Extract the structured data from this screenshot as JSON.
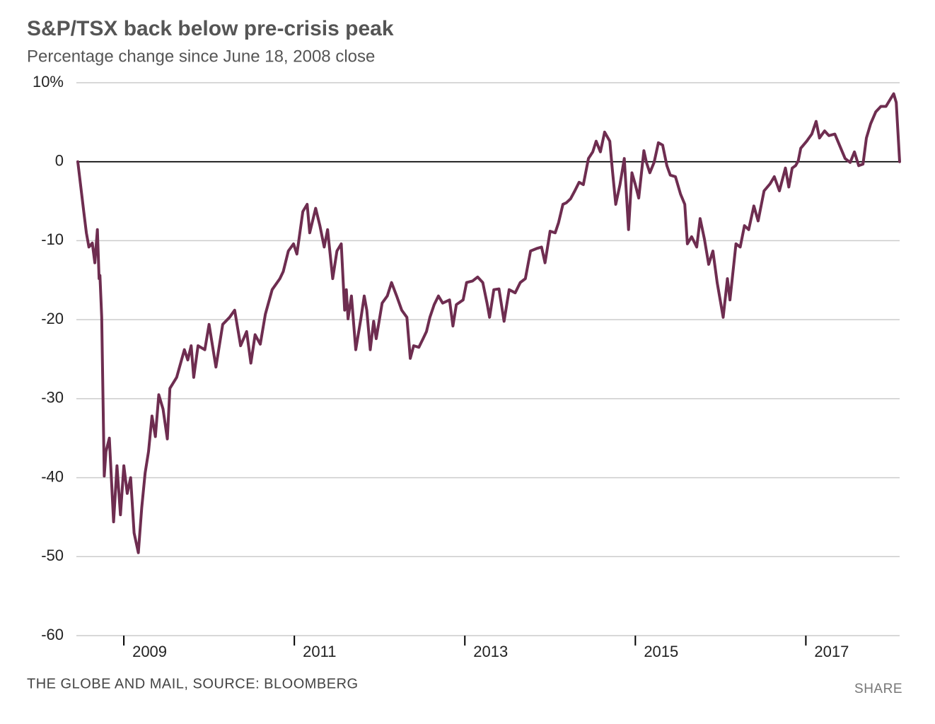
{
  "chart_data": {
    "type": "line",
    "title": "S&P/TSX back below pre-crisis peak",
    "subtitle": "Percentage change since June 18, 2008 close",
    "source": "THE GLOBE AND MAIL, SOURCE: BLOOMBERG",
    "share": "SHARE",
    "xlim": [
      2008.46,
      2018.1
    ],
    "xticks": [
      2009,
      2011,
      2013,
      2015,
      2017
    ],
    "ylim": [
      -60,
      10
    ],
    "yticks": [
      {
        "value": 10,
        "label": "10%"
      },
      0,
      -10,
      -20,
      -30,
      -40,
      -50,
      -60
    ],
    "grid": true,
    "x": [
      2008.46,
      2008.53,
      2008.56,
      2008.59,
      2008.63,
      2008.66,
      2008.69,
      2008.71,
      2008.72,
      2008.74,
      2008.77,
      2008.79,
      2008.83,
      2008.88,
      2008.92,
      2008.96,
      2009.0,
      2009.04,
      2009.08,
      2009.12,
      2009.17,
      2009.21,
      2009.25,
      2009.29,
      2009.33,
      2009.37,
      2009.41,
      2009.46,
      2009.51,
      2009.54,
      2009.62,
      2009.71,
      2009.75,
      2009.79,
      2009.82,
      2009.87,
      2009.95,
      2010.0,
      2010.08,
      2010.16,
      2010.24,
      2010.3,
      2010.37,
      2010.44,
      2010.49,
      2010.54,
      2010.6,
      2010.66,
      2010.74,
      2010.83,
      2010.87,
      2010.93,
      2010.99,
      2011.03,
      2011.1,
      2011.15,
      2011.18,
      2011.25,
      2011.3,
      2011.35,
      2011.39,
      2011.45,
      2011.5,
      2011.55,
      2011.59,
      2011.61,
      2011.63,
      2011.67,
      2011.72,
      2011.78,
      2011.82,
      2011.85,
      2011.89,
      2011.93,
      2011.96,
      2012.03,
      2012.09,
      2012.14,
      2012.2,
      2012.26,
      2012.32,
      2012.36,
      2012.4,
      2012.46,
      2012.51,
      2012.55,
      2012.59,
      2012.64,
      2012.69,
      2012.74,
      2012.82,
      2012.86,
      2012.9,
      2012.98,
      2013.02,
      2013.09,
      2013.15,
      2013.21,
      2013.26,
      2013.29,
      2013.34,
      2013.4,
      2013.46,
      2013.52,
      2013.59,
      2013.65,
      2013.71,
      2013.77,
      2013.84,
      2013.9,
      2013.94,
      2014.0,
      2014.06,
      2014.1,
      2014.15,
      2014.19,
      2014.24,
      2014.29,
      2014.34,
      2014.39,
      2014.45,
      2014.5,
      2014.54,
      2014.59,
      2014.64,
      2014.7,
      2014.73,
      2014.77,
      2014.82,
      2014.87,
      2014.92,
      2014.96,
      2015.0,
      2015.04,
      2015.1,
      2015.13,
      2015.17,
      2015.22,
      2015.27,
      2015.32,
      2015.37,
      2015.41,
      2015.47,
      2015.53,
      2015.58,
      2015.61,
      2015.66,
      2015.72,
      2015.76,
      2015.81,
      2015.86,
      2015.91,
      2015.96,
      2016.03,
      2016.08,
      2016.11,
      2016.18,
      2016.23,
      2016.28,
      2016.33,
      2016.39,
      2016.44,
      2016.51,
      2016.58,
      2016.63,
      2016.69,
      2016.76,
      2016.8,
      2016.84,
      2016.88,
      2016.91,
      2016.94,
      2017.01,
      2017.07,
      2017.12,
      2017.16,
      2017.22,
      2017.27,
      2017.34,
      2017.41,
      2017.46,
      2017.52,
      2017.57,
      2017.62,
      2017.67,
      2017.71,
      2017.76,
      2017.82,
      2017.88,
      2017.94,
      2017.99,
      2018.03,
      2018.06,
      2018.1
    ],
    "series": [
      {
        "color": "#6e2d50",
        "values": [
          0,
          -6.3,
          -9,
          -10.8,
          -10.3,
          -12.8,
          -8.6,
          -14.8,
          -14.4,
          -19.7,
          -39.8,
          -36.7,
          -35,
          -45.6,
          -38.5,
          -44.7,
          -38.5,
          -42,
          -40,
          -47,
          -49.5,
          -43.8,
          -39.4,
          -36.7,
          -32.2,
          -34.8,
          -29.5,
          -31.3,
          -35.1,
          -28.7,
          -27.3,
          -23.8,
          -25.1,
          -23.3,
          -27.3,
          -23.3,
          -23.8,
          -20.6,
          -26,
          -20.6,
          -19.7,
          -18.8,
          -23.3,
          -21.5,
          -25.5,
          -21.9,
          -23.1,
          -19.3,
          -16.2,
          -14.8,
          -13.9,
          -11.3,
          -10.4,
          -11.7,
          -6.3,
          -5.4,
          -9,
          -5.9,
          -8.1,
          -10.8,
          -8.6,
          -14.8,
          -11.3,
          -10.4,
          -18.8,
          -16.2,
          -19.9,
          -17,
          -23.8,
          -19.9,
          -17,
          -18.8,
          -23.8,
          -20.2,
          -22.4,
          -17.9,
          -17,
          -15.3,
          -17,
          -18.8,
          -19.7,
          -24.9,
          -23.3,
          -23.5,
          -22.4,
          -21.5,
          -19.7,
          -18.1,
          -17,
          -17.9,
          -17.5,
          -20.8,
          -18.1,
          -17.5,
          -15.3,
          -15.1,
          -14.6,
          -15.3,
          -17.9,
          -19.7,
          -16.2,
          -16.1,
          -20.2,
          -16.2,
          -16.6,
          -15.3,
          -14.8,
          -11.3,
          -11,
          -10.8,
          -12.8,
          -8.8,
          -9,
          -7.7,
          -5.4,
          -5.2,
          -4.7,
          -3.7,
          -2.6,
          -2.9,
          0.4,
          1.25,
          2.6,
          1.25,
          3.75,
          2.6,
          -1,
          -5.4,
          -2.9,
          0.4,
          -8.6,
          -1.4,
          -2.9,
          -4.6,
          1.4,
          -0.1,
          -1.4,
          -0.1,
          2.4,
          2.1,
          -0.5,
          -1.7,
          -1.9,
          -4.1,
          -5.4,
          -10.4,
          -9.5,
          -10.8,
          -7.2,
          -9.8,
          -13,
          -11.3,
          -15.3,
          -19.7,
          -14.8,
          -17.5,
          -10.4,
          -10.8,
          -8.1,
          -8.6,
          -5.6,
          -7.5,
          -3.7,
          -2.8,
          -1.9,
          -3.7,
          -0.8,
          -3.2,
          -0.8,
          -0.5,
          0.1,
          1.7,
          2.6,
          3.5,
          5.1,
          3,
          3.9,
          3.3,
          3.5,
          1.7,
          0.4,
          -0.1,
          1.25,
          -0.5,
          -0.3,
          3,
          4.8,
          6.3,
          7,
          7,
          7.9,
          8.6,
          7.5,
          0
        ]
      }
    ]
  }
}
